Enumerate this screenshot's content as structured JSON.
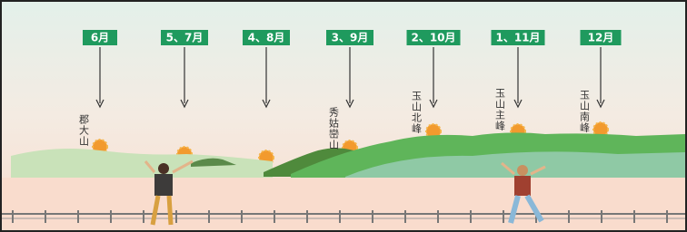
{
  "markers": [
    {
      "label": "6月"
    },
    {
      "label": "5、7月"
    },
    {
      "label": "4、8月"
    },
    {
      "label": "3、9月"
    },
    {
      "label": "2、10月"
    },
    {
      "label": "1、11月"
    },
    {
      "label": "12月"
    }
  ],
  "peaks": [
    {
      "label": "郡大山"
    },
    {
      "label": "秀姑巒山"
    },
    {
      "label": "玉山北峰"
    },
    {
      "label": "玉山主峰"
    },
    {
      "label": "玉山南峰"
    }
  ]
}
